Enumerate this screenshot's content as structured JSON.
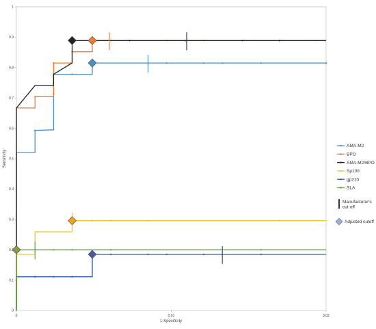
{
  "chart_data": {
    "type": "line",
    "title": "",
    "xlabel": "1-Specificity",
    "ylabel": "Sensitivity",
    "xlim": [
      0,
      0.02
    ],
    "ylim": [
      0,
      1
    ],
    "x_ticks": [
      {
        "value": 0,
        "label": "0"
      },
      {
        "value": 0.01,
        "label": "0.01"
      },
      {
        "value": 0.02,
        "label": "0.02"
      }
    ],
    "y_ticks": [
      {
        "value": 0,
        "label": "0"
      },
      {
        "value": 0.1,
        "label": "0.1"
      },
      {
        "value": 0.2,
        "label": "0.2"
      },
      {
        "value": 0.3,
        "label": "0.3"
      },
      {
        "value": 0.4,
        "label": "0.4"
      },
      {
        "value": 0.5,
        "label": "0.5"
      },
      {
        "value": 0.6,
        "label": "0.6"
      },
      {
        "value": 0.7,
        "label": "0.7"
      },
      {
        "value": 0.8,
        "label": "0.8"
      },
      {
        "value": 0.9,
        "label": "0.9"
      },
      {
        "value": 1,
        "label": "1"
      }
    ],
    "grid": false,
    "legend_position": "right",
    "series": [
      {
        "name": "AMA-M2",
        "color": "#4a90c8",
        "points": [
          [
            0,
            0
          ],
          [
            0,
            0.52
          ],
          [
            0.0012,
            0.52
          ],
          [
            0.0012,
            0.593
          ],
          [
            0.0024,
            0.595
          ],
          [
            0.0024,
            0.778
          ],
          [
            0.0049,
            0.778
          ],
          [
            0.0049,
            0.815
          ],
          [
            0.0085,
            0.815
          ],
          [
            0.0109,
            0.815
          ],
          [
            0.0146,
            0.815
          ],
          [
            0.0182,
            0.815
          ],
          [
            0.02,
            0.815
          ]
        ],
        "markers_x": [
          0.0012,
          0.0024,
          0.0036,
          0.0049,
          0.0085,
          0.0097,
          0.0121,
          0.0133,
          0.0158,
          0.02
        ]
      },
      {
        "name": "BPO",
        "color": "#f07a30",
        "points": [
          [
            0,
            0
          ],
          [
            0,
            0.667
          ],
          [
            0.0012,
            0.667
          ],
          [
            0.0012,
            0.704
          ],
          [
            0.0024,
            0.704
          ],
          [
            0.0024,
            0.815
          ],
          [
            0.0036,
            0.815
          ],
          [
            0.0036,
            0.852
          ],
          [
            0.0049,
            0.852
          ],
          [
            0.0049,
            0.889
          ],
          [
            0.02,
            0.889
          ]
        ],
        "markers_x": [
          0.0012,
          0.0024,
          0.0036,
          0.0049,
          0.0061,
          0.0097,
          0.0121,
          0.017,
          0.0194
        ]
      },
      {
        "name": "AMA-M2/BPO",
        "color": "#222222",
        "points": [
          [
            0,
            0
          ],
          [
            0,
            0.667
          ],
          [
            0.0012,
            0.741
          ],
          [
            0.0024,
            0.741
          ],
          [
            0.0024,
            0.778
          ],
          [
            0.0036,
            0.815
          ],
          [
            0.0036,
            0.889
          ],
          [
            0.0049,
            0.889
          ],
          [
            0.02,
            0.889
          ]
        ],
        "markers_x": [
          0.0073,
          0.0109,
          0.0146,
          0.017
        ]
      },
      {
        "name": "Sp100",
        "color": "#f5c518",
        "points": [
          [
            0,
            0
          ],
          [
            0,
            0.185
          ],
          [
            0.0012,
            0.185
          ],
          [
            0.0012,
            0.259
          ],
          [
            0.0024,
            0.259
          ],
          [
            0.0036,
            0.259
          ],
          [
            0.0036,
            0.296
          ],
          [
            0.02,
            0.296
          ]
        ],
        "markers_x": [
          0.0049,
          0.0061,
          0.0085,
          0.017
        ]
      },
      {
        "name": "gp210",
        "color": "#2c5aa8",
        "points": [
          [
            0,
            0
          ],
          [
            0,
            0.111
          ],
          [
            0.0012,
            0.111
          ],
          [
            0.0024,
            0.111
          ],
          [
            0.0036,
            0.111
          ],
          [
            0.0049,
            0.111
          ],
          [
            0.0049,
            0.185
          ],
          [
            0.02,
            0.185
          ]
        ],
        "markers_x": [
          0.0012,
          0.0024,
          0.0036,
          0.0061,
          0.0085,
          0.0097,
          0.0121,
          0.0133,
          0.0158
        ]
      },
      {
        "name": "SLA",
        "color": "#5aa832",
        "points": [
          [
            0,
            0
          ],
          [
            0,
            0.2
          ],
          [
            0.02,
            0.2
          ]
        ],
        "markers_x": [
          0.0012,
          0.0024,
          0.0036,
          0.0061,
          0.0158
        ]
      }
    ],
    "manufacturer_cutoffs": [
      {
        "series": "AMA-M2",
        "x": 0.0085,
        "y": 0.815
      },
      {
        "series": "BPO",
        "x": 0.006,
        "y": 0.889
      },
      {
        "series": "AMA-M2/BPO",
        "x": 0.011,
        "y": 0.889
      },
      {
        "series": "Sp100",
        "x": 0.0036,
        "y": 0.296
      },
      {
        "series": "gp210",
        "x": 0.0133,
        "y": 0.185
      },
      {
        "series": "SLA",
        "x": 0.0012,
        "y": 0.2
      }
    ],
    "adjusted_cutoffs": [
      {
        "series": "AMA-M2",
        "x": 0.0049,
        "y": 0.815,
        "color": "#4a90c8"
      },
      {
        "series": "BPO",
        "x": 0.0049,
        "y": 0.889,
        "color": "#f07a30"
      },
      {
        "series": "AMA-M2/BPO",
        "x": 0.0036,
        "y": 0.889,
        "color": "#222222"
      },
      {
        "series": "Sp100",
        "x": 0.0036,
        "y": 0.296,
        "color": "#f5a020"
      },
      {
        "series": "gp210",
        "x": 0.0049,
        "y": 0.185,
        "color": "#4a5aa8"
      },
      {
        "series": "SLA",
        "x": 0,
        "y": 0.2,
        "color": "#8a9a40"
      }
    ],
    "legend": {
      "manufacturer_label_line1": "Manufacturer's",
      "manufacturer_label_line2": "cut-off",
      "adjusted_label": "Adjusted cutoff",
      "adjusted_marker_color": "#9ab0d8"
    }
  }
}
